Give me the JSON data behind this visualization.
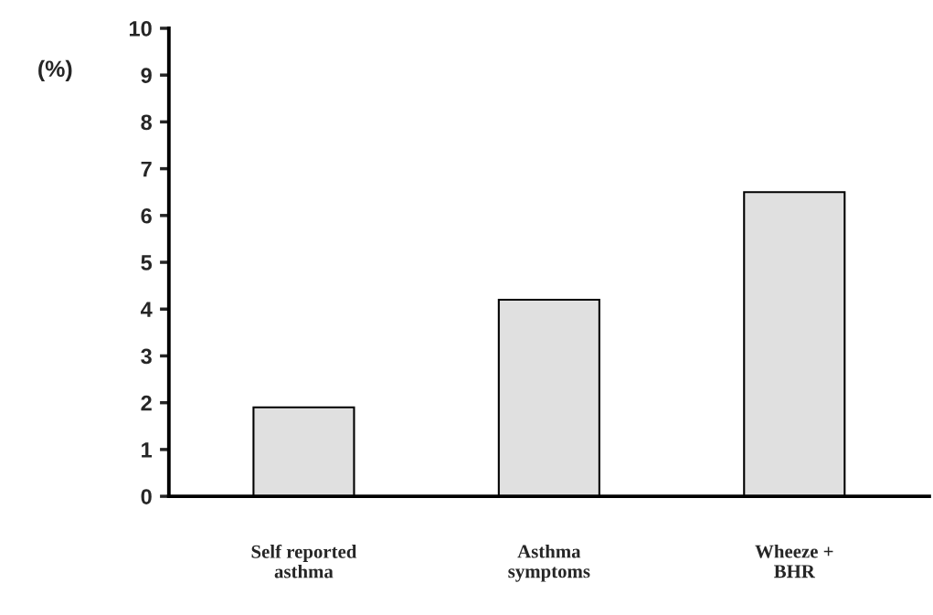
{
  "chart_data": {
    "type": "bar",
    "ylabel": "(%)",
    "categories": [
      "Self reported\nasthma",
      "Asthma\nsymptoms",
      "Wheeze +\nBHR"
    ],
    "values": [
      1.9,
      4.2,
      6.5
    ],
    "color": "#e0e0e0",
    "ylim": [
      0,
      10
    ],
    "yticks": [
      0,
      1,
      2,
      3,
      4,
      5,
      6,
      7,
      8,
      9,
      10
    ],
    "grid": false,
    "legend": false
  }
}
